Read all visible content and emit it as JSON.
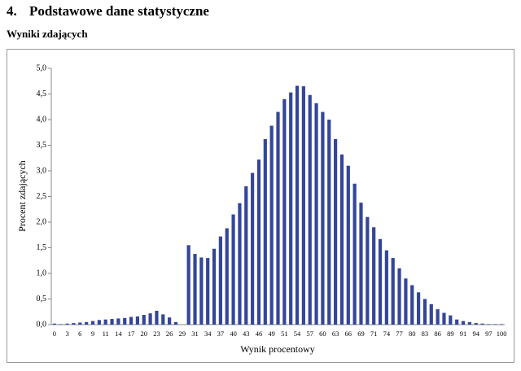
{
  "heading": {
    "number": "4.",
    "title": "Podstawowe dane statystyczne"
  },
  "chart_data": {
    "type": "bar",
    "title": "Wyniki zdających",
    "x_label": "Wynik procentowy",
    "y_label": "Procent zdających",
    "color": "#34469a",
    "grid": false,
    "categories": [
      "0",
      null,
      "3",
      null,
      "6",
      null,
      "9",
      null,
      "11",
      null,
      "14",
      null,
      "17",
      null,
      "20",
      null,
      "23",
      null,
      "26",
      null,
      "29",
      null,
      "31",
      null,
      "34",
      null,
      "37",
      null,
      "40",
      null,
      "43",
      null,
      "46",
      null,
      "49",
      null,
      "51",
      null,
      "54",
      null,
      "57",
      null,
      "60",
      null,
      "63",
      null,
      "66",
      null,
      "69",
      null,
      "71",
      null,
      "74",
      null,
      "77",
      null,
      "80",
      null,
      "83",
      null,
      "86",
      null,
      "89",
      null,
      "91",
      null,
      "94",
      null,
      "97",
      null,
      "100"
    ],
    "values": [
      0.02,
      0.01,
      0.02,
      0.03,
      0.04,
      0.05,
      0.07,
      0.09,
      0.1,
      0.11,
      0.12,
      0.13,
      0.15,
      0.16,
      0.19,
      0.22,
      0.27,
      0.2,
      0.14,
      0.05,
      0.0,
      1.55,
      1.38,
      1.31,
      1.3,
      1.48,
      1.72,
      1.88,
      2.15,
      2.37,
      2.7,
      2.96,
      3.22,
      3.62,
      3.88,
      4.15,
      4.4,
      4.53,
      4.66,
      4.65,
      4.48,
      4.32,
      4.15,
      4.0,
      3.62,
      3.32,
      3.1,
      2.75,
      2.38,
      2.1,
      1.9,
      1.67,
      1.45,
      1.3,
      1.1,
      0.9,
      0.77,
      0.63,
      0.5,
      0.4,
      0.3,
      0.23,
      0.18,
      0.1,
      0.07,
      0.05,
      0.03,
      0.02,
      0.01,
      0.01,
      0.01
    ],
    "ylim": [
      0,
      5
    ],
    "yticks": [
      {
        "value": 0,
        "label": "0,0"
      },
      {
        "value": 0.5,
        "label": "0,5"
      },
      {
        "value": 1,
        "label": "1,0"
      },
      {
        "value": 1.5,
        "label": "1,5"
      },
      {
        "value": 2,
        "label": "2,0"
      },
      {
        "value": 2.5,
        "label": "2,5"
      },
      {
        "value": 3,
        "label": "3,0"
      },
      {
        "value": 3.5,
        "label": "3,5"
      },
      {
        "value": 4,
        "label": "4,0"
      },
      {
        "value": 4.5,
        "label": "4,5"
      },
      {
        "value": 5,
        "label": "5,0"
      }
    ]
  }
}
